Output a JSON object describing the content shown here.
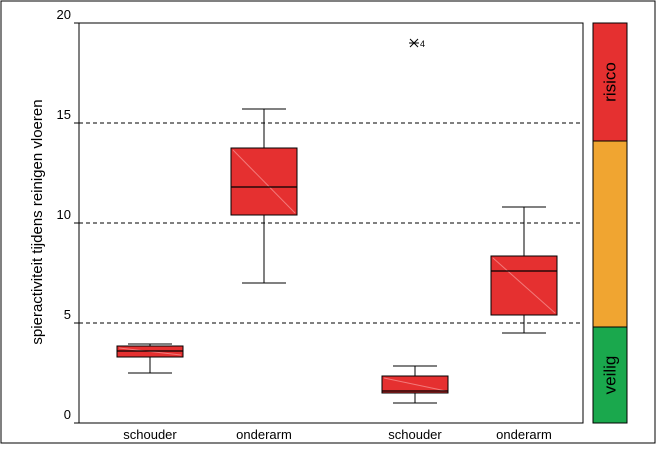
{
  "chart_data": {
    "type": "boxplot",
    "ylabel": "spieractiviteit tijdens reinigen vloeren",
    "ylim": [
      0,
      20
    ],
    "y_ticks": [
      0,
      5,
      10,
      15,
      20
    ],
    "y_tick_labels": [
      "0",
      "5",
      "10",
      "15",
      "20"
    ],
    "gridlines": [
      5,
      10,
      15
    ],
    "grid_style": "dashed",
    "categories": [
      "schouder",
      "onderarm",
      "schouder",
      "onderarm"
    ],
    "boxes": [
      {
        "label": "schouder",
        "min": 2.5,
        "q1": 3.3,
        "median": 3.6,
        "q3": 3.85,
        "max": 3.95
      },
      {
        "label": "onderarm",
        "min": 7.0,
        "q1": 10.4,
        "median": 11.8,
        "q3": 13.75,
        "max": 15.7
      },
      {
        "label": "schouder",
        "min": 1.0,
        "q1": 1.5,
        "median": 1.6,
        "q3": 2.35,
        "max": 2.85,
        "outliers": [
          {
            "y": 19.0,
            "label": "4"
          }
        ]
      },
      {
        "label": "onderarm",
        "min": 4.5,
        "q1": 5.4,
        "median": 7.6,
        "q3": 8.35,
        "max": 10.8
      }
    ],
    "box_color": "#e53030",
    "zones": [
      {
        "label": "veilig",
        "from": 0,
        "to": 4.8,
        "color": "#1aa84d"
      },
      {
        "label": "",
        "from": 4.8,
        "to": 14.1,
        "color": "#f0a531"
      },
      {
        "label": "risico",
        "from": 14.1,
        "to": 20,
        "color": "#e53030"
      }
    ]
  }
}
